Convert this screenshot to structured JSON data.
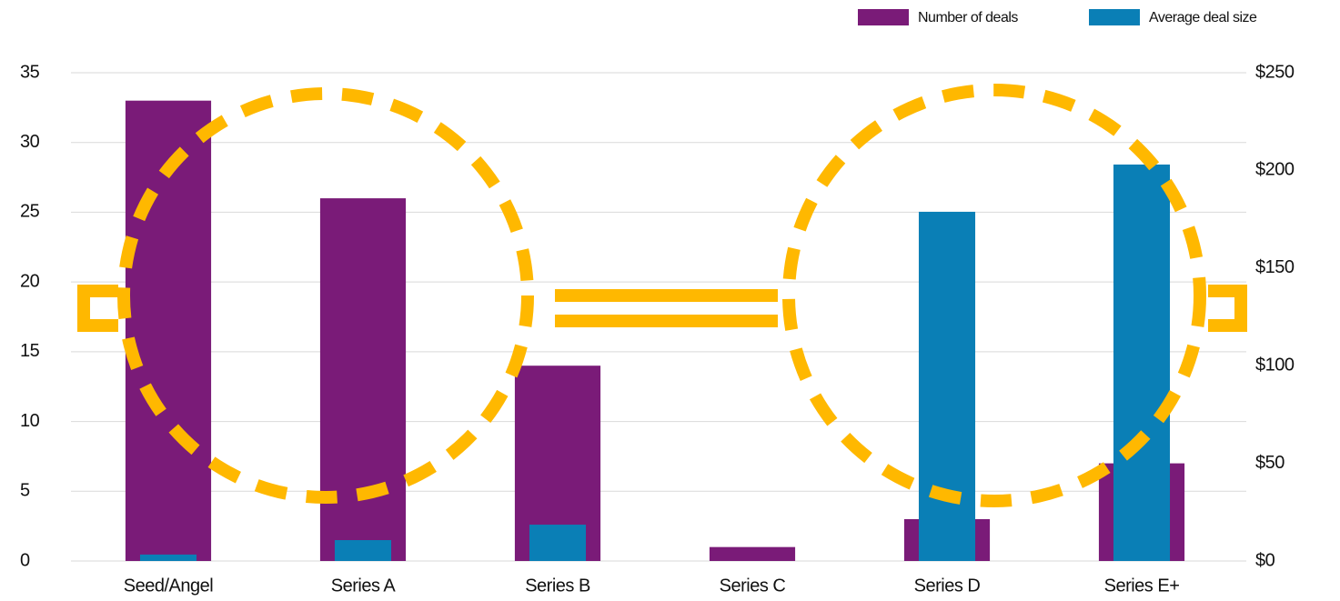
{
  "chart_data": {
    "type": "bar",
    "categories": [
      "Seed/Angel",
      "Series A",
      "Series B",
      "Series C",
      "Series D",
      "Series E+"
    ],
    "series": [
      {
        "name": "Number of deals",
        "color": "#7a1b78",
        "values": [
          33,
          26,
          14,
          1,
          3,
          7
        ]
      },
      {
        "name": "Average deal size",
        "color": "#0a7fb6",
        "axis": "y2",
        "values": [
          3.3,
          10.7,
          18.6,
          0,
          178.8,
          203
        ]
      }
    ],
    "ylim": [
      0,
      35
    ],
    "yticks": [
      0,
      5,
      10,
      15,
      20,
      25,
      30,
      35
    ],
    "y2lim": [
      0,
      250
    ],
    "y2ticks": [
      {
        "value": 0,
        "label": "$0"
      },
      {
        "value": 50,
        "label": "$50"
      },
      {
        "value": 100,
        "label": "$100"
      },
      {
        "value": 150,
        "label": "$150"
      },
      {
        "value": 200,
        "label": "$200"
      },
      {
        "value": 250,
        "label": "$250"
      }
    ],
    "grid": true,
    "legend": "top-right"
  }
}
